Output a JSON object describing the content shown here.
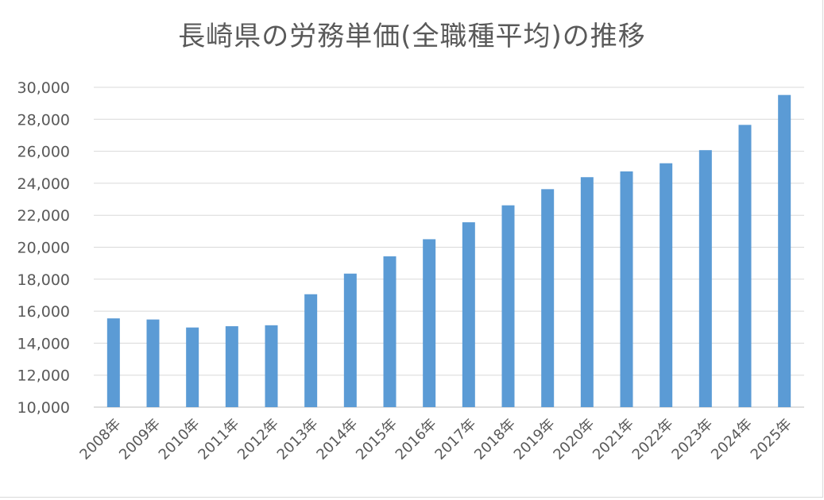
{
  "chart_data": {
    "type": "bar",
    "title": "長崎県の労務単価(全職種平均)の推移",
    "categories": [
      "2008年",
      "2009年",
      "2010年",
      "2011年",
      "2012年",
      "2013年",
      "2014年",
      "2015年",
      "2016年",
      "2017年",
      "2018年",
      "2019年",
      "2020年",
      "2021年",
      "2022年",
      "2023年",
      "2024年",
      "2025年"
    ],
    "series": [
      {
        "values": [
          15550,
          15480,
          14980,
          15060,
          15120,
          17060,
          18350,
          19430,
          20500,
          21560,
          22620,
          23630,
          24380,
          24740,
          25250,
          26070,
          27650,
          29520
        ],
        "color": "#5b9bd5"
      }
    ],
    "ylim": [
      10000,
      30000
    ],
    "yticks": [
      "10,000",
      "12,000",
      "14,000",
      "16,000",
      "18,000",
      "20,000",
      "22,000",
      "24,000",
      "26,000",
      "28,000",
      "30,000"
    ],
    "xlabel": "",
    "ylabel": "",
    "grid": true,
    "legend": "none"
  }
}
